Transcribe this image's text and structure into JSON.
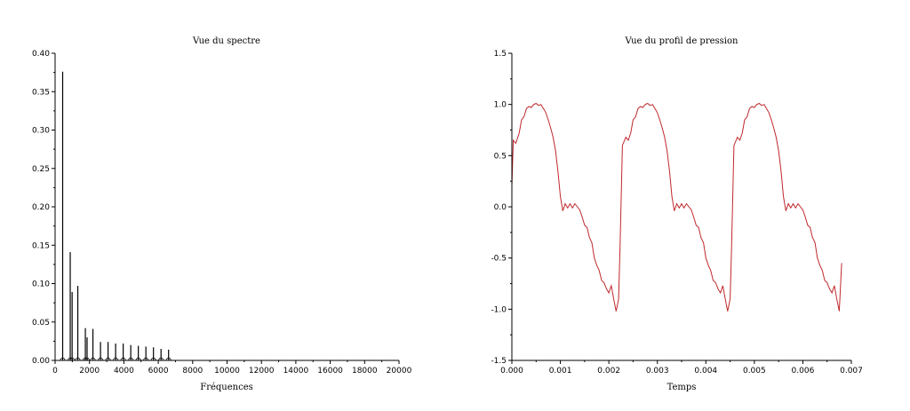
{
  "chart_data": [
    {
      "type": "bar",
      "title": "Vue du spectre",
      "xlabel": "Fréquences",
      "ylabel": "",
      "xlim": [
        0,
        20000
      ],
      "ylim": [
        0,
        0.4
      ],
      "x_ticks": [
        "0",
        "2000",
        "4000",
        "6000",
        "8000",
        "10000",
        "12000",
        "14000",
        "16000",
        "18000",
        "20000"
      ],
      "y_ticks": [
        "0.00",
        "0.05",
        "0.10",
        "0.15",
        "0.20",
        "0.25",
        "0.30",
        "0.35",
        "0.40"
      ],
      "grid": false,
      "color": "#000000",
      "series": [
        {
          "x": [
            440,
            880,
            990,
            1320,
            1760,
            1860,
            2200,
            2640,
            3080,
            3520,
            3960,
            4400,
            4840,
            5280,
            5720,
            6160,
            6600
          ],
          "values": [
            0.376,
            0.141,
            0.089,
            0.097,
            0.042,
            0.03,
            0.041,
            0.024,
            0.024,
            0.022,
            0.022,
            0.02,
            0.019,
            0.018,
            0.017,
            0.015,
            0.014
          ]
        }
      ]
    },
    {
      "type": "line",
      "title": "Vue du profil de pression",
      "xlabel": "Temps",
      "ylabel": "",
      "xlim": [
        0,
        0.007
      ],
      "ylim": [
        -1.5,
        1.5
      ],
      "x_ticks": [
        "0.000",
        "0.001",
        "0.002",
        "0.003",
        "0.004",
        "0.005",
        "0.006",
        "0.007"
      ],
      "y_ticks": [
        "-1.5",
        "-1.0",
        "-0.5",
        "0.0",
        "0.5",
        "1.0",
        "1.5"
      ],
      "grid": false,
      "color": "#c0282c",
      "series": [
        {
          "x": [
            0,
            3e-05,
            8e-05,
            0.00015,
            0.0002,
            0.00025,
            0.0003,
            0.00035,
            0.0004,
            0.00045,
            0.0005,
            0.00055,
            0.0006,
            0.00065,
            0.0007,
            0.00075,
            0.0008,
            0.00085,
            0.0009,
            0.00095,
            0.001,
            0.00105,
            0.0011,
            0.00115,
            0.0012,
            0.00125,
            0.0013,
            0.00135,
            0.0014,
            0.00145,
            0.0015,
            0.00155,
            0.0016,
            0.00165,
            0.0017,
            0.00175,
            0.0018,
            0.00185,
            0.0019,
            0.00195,
            0.002,
            0.00205,
            0.0021,
            0.00215,
            0.0022,
            0.00223,
            0.00228,
            0.00235,
            0.0024,
            0.00245,
            0.0025,
            0.00255,
            0.0026,
            0.00265,
            0.0027,
            0.00275,
            0.0028,
            0.00285,
            0.0029,
            0.00295,
            0.003,
            0.00305,
            0.0031,
            0.00315,
            0.0032,
            0.00325,
            0.0033,
            0.00335,
            0.0034,
            0.00345,
            0.0035,
            0.00355,
            0.0036,
            0.00365,
            0.0037,
            0.00375,
            0.0038,
            0.00385,
            0.0039,
            0.00395,
            0.004,
            0.00405,
            0.0041,
            0.00415,
            0.0042,
            0.00425,
            0.0043,
            0.00435,
            0.0044,
            0.00445,
            0.0045,
            0.00453,
            0.00458,
            0.00465,
            0.0047,
            0.00475,
            0.0048,
            0.00485,
            0.0049,
            0.00495,
            0.005,
            0.00505,
            0.0051,
            0.00515,
            0.0052,
            0.00525,
            0.0053,
            0.00535,
            0.0054,
            0.00545,
            0.0055,
            0.00555,
            0.0056,
            0.00565,
            0.0057,
            0.00575,
            0.0058,
            0.00585,
            0.0059,
            0.00595,
            0.006,
            0.00605,
            0.0061,
            0.00615,
            0.0062,
            0.00625,
            0.0063,
            0.00635,
            0.0064,
            0.00645,
            0.0065,
            0.00655,
            0.0066,
            0.00665,
            0.0067,
            0.00675,
            0.0068
          ],
          "values": [
            0.2,
            0.65,
            0.62,
            0.72,
            0.85,
            0.88,
            0.96,
            0.98,
            0.97,
            1.0,
            1.01,
            0.99,
            1.0,
            0.96,
            0.92,
            0.85,
            0.77,
            0.68,
            0.55,
            0.35,
            0.1,
            -0.04,
            0.03,
            -0.01,
            0.03,
            -0.01,
            0.03,
            0.0,
            -0.03,
            -0.1,
            -0.18,
            -0.2,
            -0.3,
            -0.35,
            -0.5,
            -0.57,
            -0.62,
            -0.72,
            -0.74,
            -0.8,
            -0.84,
            -0.77,
            -0.9,
            -1.02,
            -0.9,
            -0.4,
            0.6,
            0.68,
            0.65,
            0.72,
            0.85,
            0.88,
            0.96,
            0.98,
            0.97,
            1.0,
            1.01,
            0.99,
            1.0,
            0.96,
            0.92,
            0.85,
            0.77,
            0.68,
            0.55,
            0.35,
            0.1,
            -0.04,
            0.03,
            -0.01,
            0.03,
            -0.01,
            0.03,
            0.0,
            -0.03,
            -0.1,
            -0.18,
            -0.2,
            -0.3,
            -0.35,
            -0.5,
            -0.57,
            -0.62,
            -0.72,
            -0.74,
            -0.8,
            -0.84,
            -0.77,
            -0.9,
            -1.02,
            -0.9,
            -0.4,
            0.6,
            0.68,
            0.65,
            0.72,
            0.85,
            0.88,
            0.96,
            0.98,
            0.97,
            1.0,
            1.01,
            0.99,
            1.0,
            0.96,
            0.92,
            0.85,
            0.77,
            0.68,
            0.55,
            0.35,
            0.1,
            -0.04,
            0.03,
            -0.01,
            0.03,
            -0.01,
            0.03,
            0.0,
            -0.03,
            -0.1,
            -0.18,
            -0.2,
            -0.3,
            -0.35,
            -0.5,
            -0.57,
            -0.62,
            -0.72,
            -0.74,
            -0.8,
            -0.84,
            -0.77,
            -0.9,
            -1.02,
            -0.55
          ]
        }
      ]
    }
  ]
}
